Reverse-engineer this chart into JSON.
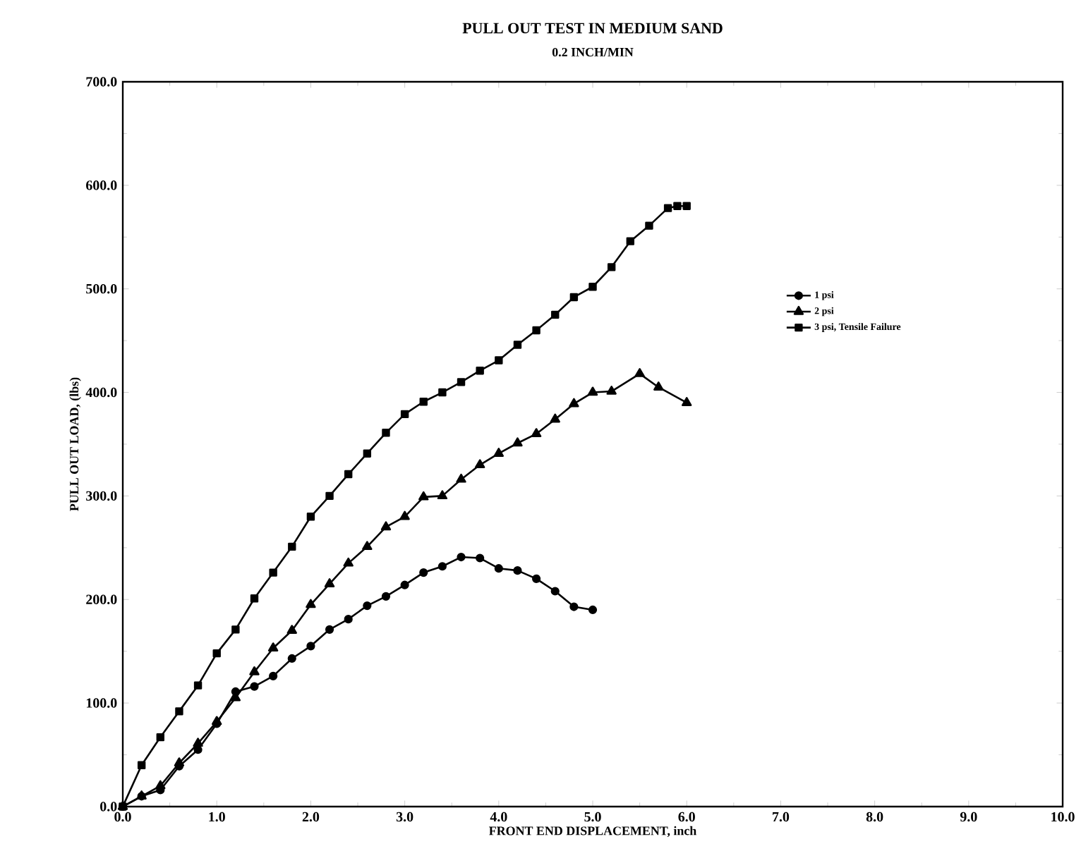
{
  "chart_data": {
    "type": "line",
    "title": "PULL OUT TEST IN MEDIUM SAND",
    "subtitle": "0.2 INCH/MIN",
    "xlabel": "FRONT END DISPLACEMENT, inch",
    "ylabel": "PULL OUT LOAD, (lbs)",
    "xlim": [
      0,
      10
    ],
    "ylim": [
      0,
      700
    ],
    "xticks": [
      {
        "value": 0,
        "label": "0.0"
      },
      {
        "value": 1,
        "label": "1.0"
      },
      {
        "value": 2,
        "label": "2.0"
      },
      {
        "value": 3,
        "label": "3.0"
      },
      {
        "value": 4,
        "label": "4.0"
      },
      {
        "value": 5,
        "label": "5.0"
      },
      {
        "value": 6,
        "label": "6.0"
      },
      {
        "value": 7,
        "label": "7.0"
      },
      {
        "value": 8,
        "label": "8.0"
      },
      {
        "value": 9,
        "label": "9.0"
      },
      {
        "value": 10,
        "label": "10.0"
      }
    ],
    "yticks": [
      {
        "value": 0,
        "label": "0.0"
      },
      {
        "value": 100,
        "label": "100.0"
      },
      {
        "value": 200,
        "label": "200.0"
      },
      {
        "value": 300,
        "label": "300.0"
      },
      {
        "value": 400,
        "label": "400.0"
      },
      {
        "value": 500,
        "label": "500.0"
      },
      {
        "value": 600,
        "label": "600.0"
      },
      {
        "value": 700,
        "label": "700.0"
      }
    ],
    "grid": false,
    "legend": "right",
    "line_style": "solid",
    "series": [
      {
        "name": "1 psi",
        "color": "#000000",
        "marker": "circle",
        "x": [
          0,
          0.2,
          0.4,
          0.6,
          0.8,
          1.0,
          1.2,
          1.4,
          1.6,
          1.8,
          2.0,
          2.2,
          2.4,
          2.6,
          2.8,
          3.0,
          3.2,
          3.4,
          3.6,
          3.8,
          4.0,
          4.2,
          4.4,
          4.6,
          4.8,
          5.0
        ],
        "values": [
          0,
          10,
          16,
          39,
          55,
          80,
          111,
          116,
          126,
          143,
          155,
          171,
          181,
          194,
          203,
          214,
          226,
          232,
          241,
          240,
          230,
          228,
          220,
          208,
          193,
          190
        ]
      },
      {
        "name": "2 psi",
        "color": "#000000",
        "marker": "triangle",
        "x": [
          0,
          0.2,
          0.4,
          0.6,
          0.8,
          1.0,
          1.2,
          1.4,
          1.6,
          1.8,
          2.0,
          2.2,
          2.4,
          2.6,
          2.8,
          3.0,
          3.2,
          3.4,
          3.6,
          3.8,
          4.0,
          4.2,
          4.4,
          4.6,
          4.8,
          5.0,
          5.2,
          5.5,
          5.7,
          6.0
        ],
        "values": [
          0,
          10,
          20,
          42,
          61,
          82,
          105,
          130,
          153,
          170,
          195,
          215,
          235,
          251,
          270,
          280,
          299,
          300,
          316,
          330,
          341,
          351,
          360,
          374,
          389,
          400,
          401,
          418,
          405,
          390
        ]
      },
      {
        "name": "3 psi, Tensile Failure",
        "color": "#000000",
        "marker": "square",
        "x": [
          0,
          0.2,
          0.4,
          0.6,
          0.8,
          1.0,
          1.2,
          1.4,
          1.6,
          1.8,
          2.0,
          2.2,
          2.4,
          2.6,
          2.8,
          3.0,
          3.2,
          3.4,
          3.6,
          3.8,
          4.0,
          4.2,
          4.4,
          4.6,
          4.8,
          5.0,
          5.2,
          5.4,
          5.6,
          5.8,
          5.9,
          6.0
        ],
        "values": [
          0,
          40,
          67,
          92,
          117,
          148,
          171,
          201,
          226,
          251,
          280,
          300,
          321,
          341,
          361,
          379,
          391,
          400,
          410,
          421,
          431,
          446,
          460,
          475,
          492,
          502,
          521,
          546,
          561,
          578,
          580,
          580
        ]
      }
    ]
  }
}
